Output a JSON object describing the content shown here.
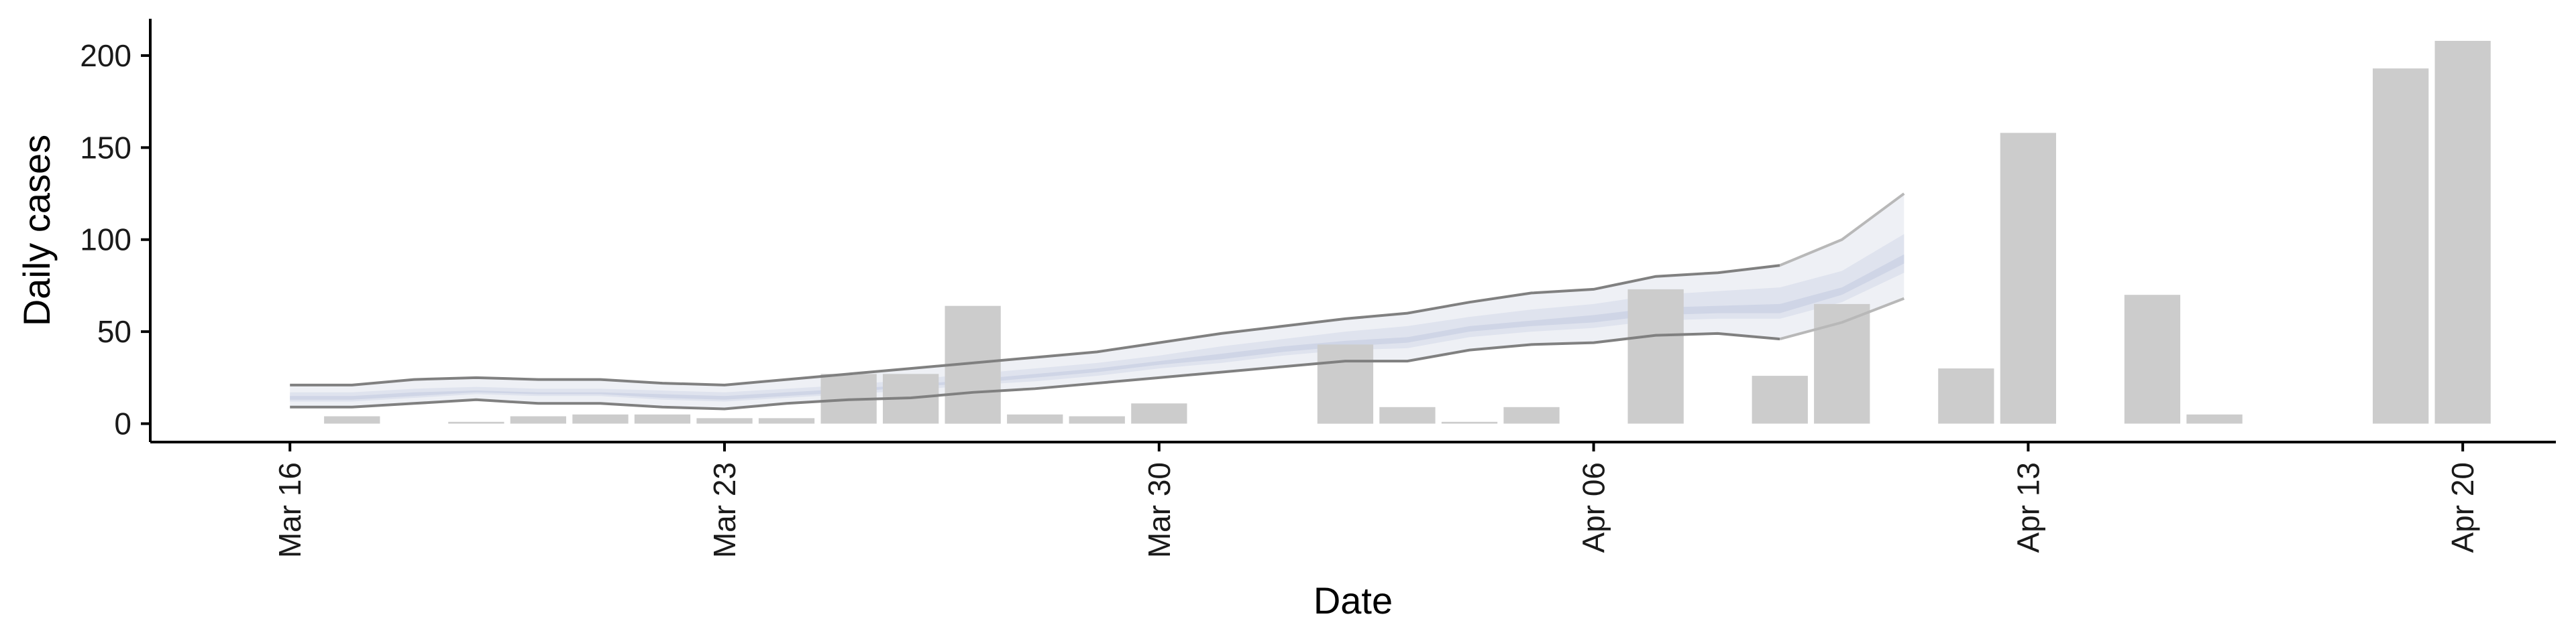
{
  "chart_data": {
    "type": "bar",
    "xlabel": "Date",
    "ylabel": "Daily cases",
    "ylim": [
      -10,
      220
    ],
    "y_ticks": [
      0,
      50,
      100,
      150,
      200
    ],
    "x_ticks": [
      {
        "date": "2020-03-16",
        "label": "Mar 16"
      },
      {
        "date": "2020-03-23",
        "label": "Mar 23"
      },
      {
        "date": "2020-03-30",
        "label": "Mar 30"
      },
      {
        "date": "2020-04-06",
        "label": "Apr 06"
      },
      {
        "date": "2020-04-13",
        "label": "Apr 13"
      },
      {
        "date": "2020-04-20",
        "label": "Apr 20"
      }
    ],
    "xlim": [
      "2020-03-13T18:00",
      "2020-04-21T12:00"
    ],
    "colors": {
      "bars": "#cccccc",
      "band_outer": "#eef0f5",
      "band_mid": "#dfe3ee",
      "band_inner": "#cfd5e6",
      "bound_lines": "#808080",
      "bound_lines_forecast": "#b8b8b8",
      "axis": "#000000"
    },
    "bars": [
      {
        "date": "2020-03-17",
        "value": 4
      },
      {
        "date": "2020-03-19",
        "value": 1
      },
      {
        "date": "2020-03-20",
        "value": 4
      },
      {
        "date": "2020-03-21",
        "value": 5
      },
      {
        "date": "2020-03-22",
        "value": 5
      },
      {
        "date": "2020-03-23",
        "value": 3
      },
      {
        "date": "2020-03-24",
        "value": 3
      },
      {
        "date": "2020-03-25",
        "value": 27
      },
      {
        "date": "2020-03-26",
        "value": 27
      },
      {
        "date": "2020-03-27",
        "value": 64
      },
      {
        "date": "2020-03-28",
        "value": 5
      },
      {
        "date": "2020-03-29",
        "value": 4
      },
      {
        "date": "2020-03-30",
        "value": 11
      },
      {
        "date": "2020-04-02",
        "value": 43
      },
      {
        "date": "2020-04-03",
        "value": 9
      },
      {
        "date": "2020-04-04",
        "value": 1
      },
      {
        "date": "2020-04-05",
        "value": 9
      },
      {
        "date": "2020-04-07",
        "value": 73
      },
      {
        "date": "2020-04-09",
        "value": 26
      },
      {
        "date": "2020-04-10",
        "value": 65
      },
      {
        "date": "2020-04-12",
        "value": 30
      },
      {
        "date": "2020-04-13",
        "value": 158
      },
      {
        "date": "2020-04-15",
        "value": 70
      },
      {
        "date": "2020-04-16",
        "value": 5
      },
      {
        "date": "2020-04-19",
        "value": 193
      },
      {
        "date": "2020-04-20",
        "value": 208
      }
    ],
    "band": {
      "dates": [
        "2020-03-16",
        "2020-03-17",
        "2020-03-18",
        "2020-03-19",
        "2020-03-20",
        "2020-03-21",
        "2020-03-22",
        "2020-03-23",
        "2020-03-24",
        "2020-03-25",
        "2020-03-26",
        "2020-03-27",
        "2020-03-28",
        "2020-03-29",
        "2020-03-30",
        "2020-03-31",
        "2020-04-01",
        "2020-04-02",
        "2020-04-03",
        "2020-04-04",
        "2020-04-05",
        "2020-04-06",
        "2020-04-07",
        "2020-04-08",
        "2020-04-09",
        "2020-04-10",
        "2020-04-11"
      ],
      "upper": [
        21,
        21,
        24,
        25,
        24,
        24,
        22,
        21,
        24,
        27,
        30,
        33,
        36,
        39,
        44,
        49,
        53,
        57,
        60,
        66,
        71,
        73,
        80,
        82,
        86,
        100,
        125
      ],
      "lower": [
        9,
        9,
        11,
        13,
        11,
        11,
        9,
        8,
        11,
        13,
        14,
        17,
        19,
        22,
        25,
        28,
        31,
        34,
        34,
        40,
        43,
        44,
        48,
        49,
        46,
        55,
        68
      ],
      "mid_upper": [
        17,
        17,
        19,
        20,
        19,
        19,
        18,
        17,
        19,
        21,
        24,
        27,
        30,
        33,
        37,
        42,
        46,
        50,
        53,
        58,
        62,
        65,
        70,
        72,
        74,
        83,
        103
      ],
      "mid_lower": [
        12,
        12,
        14,
        16,
        15,
        15,
        13,
        12,
        14,
        16,
        18,
        21,
        23,
        26,
        30,
        33,
        37,
        40,
        41,
        47,
        50,
        52,
        56,
        57,
        57,
        66,
        82
      ],
      "inner_upper": [
        15,
        15,
        17,
        18,
        17,
        17,
        16,
        15,
        17,
        19,
        21,
        24,
        27,
        30,
        34,
        38,
        42,
        45,
        47,
        53,
        56,
        59,
        63,
        64,
        65,
        74,
        92
      ],
      "inner_lower": [
        13,
        13,
        15,
        17,
        16,
        16,
        14,
        13,
        15,
        17,
        20,
        22,
        25,
        28,
        32,
        35,
        39,
        42,
        44,
        50,
        53,
        55,
        59,
        60,
        60,
        70,
        87
      ],
      "forecast_from": "2020-04-09"
    }
  }
}
